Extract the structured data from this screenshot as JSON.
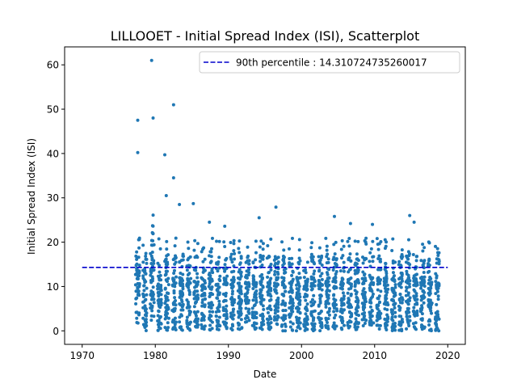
{
  "chart_data": {
    "type": "scatter",
    "title": "LILLOOET - Initial Spread Index (ISI), Scatterplot",
    "xlabel": "Date",
    "ylabel": "Initial Spread Index (ISI)",
    "xlim": [
      1967.6,
      2022.4
    ],
    "ylim": [
      -3.05,
      64.05
    ],
    "x_ticks": [
      1970,
      1980,
      1990,
      2000,
      2010,
      2020
    ],
    "y_ticks": [
      0,
      10,
      20,
      30,
      40,
      50,
      60
    ],
    "grid": false,
    "legend_position": "top-right",
    "series": [
      {
        "kind": "scatter",
        "color": "#1f77b4",
        "marker_size": 2,
        "x_range": [
          1977.3,
          2019.5
        ],
        "notable_points": [
          {
            "x": 1977.6,
            "y": 47.5
          },
          {
            "x": 1977.6,
            "y": 40.2
          },
          {
            "x": 1979.5,
            "y": 61.0
          },
          {
            "x": 1979.7,
            "y": 48.0
          },
          {
            "x": 1982.5,
            "y": 51.0
          },
          {
            "x": 1981.3,
            "y": 39.7
          },
          {
            "x": 1982.5,
            "y": 34.5
          },
          {
            "x": 1981.5,
            "y": 30.5
          },
          {
            "x": 1983.3,
            "y": 28.5
          },
          {
            "x": 1985.2,
            "y": 28.7
          },
          {
            "x": 1996.5,
            "y": 27.9
          },
          {
            "x": 2004.5,
            "y": 25.8
          },
          {
            "x": 2014.8,
            "y": 26.0
          },
          {
            "x": 1994.2,
            "y": 25.5
          },
          {
            "x": 2006.7,
            "y": 24.2
          },
          {
            "x": 2009.7,
            "y": 24.0
          },
          {
            "x": 2015.4,
            "y": 24.5
          },
          {
            "x": 1987.4,
            "y": 24.5
          },
          {
            "x": 1989.5,
            "y": 23.6
          }
        ]
      },
      {
        "kind": "hline",
        "name": "90th percentile : 14.310724735260017",
        "y": 14.310724735260017,
        "x_range": [
          1970,
          2020
        ],
        "color": "#0000cc",
        "dashed": true
      }
    ]
  }
}
